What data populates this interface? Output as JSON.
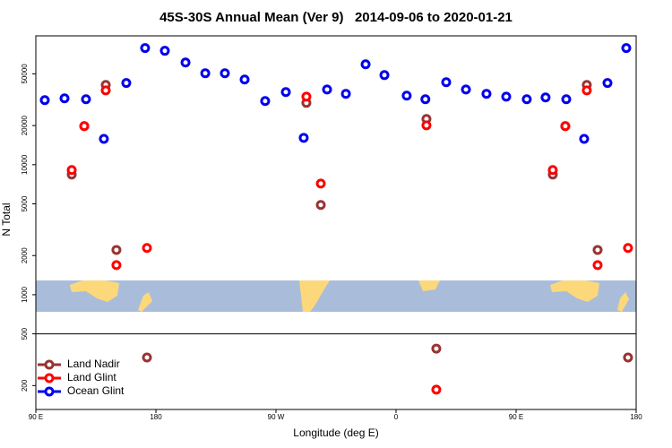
{
  "chart_data": {
    "type": "scatter",
    "title": "45S-30S Annual Mean (Ver 9)   2014-09-06 to 2020-01-21",
    "x_label": "Longitude (deg E)",
    "y_label": "N Total",
    "xlim": [
      90,
      540
    ],
    "ylim": [
      131,
      98000
    ],
    "log_y": true,
    "legend": "bottom-left",
    "xticks": [
      {
        "value": 90,
        "label": "90 E"
      },
      180,
      {
        "value": 270,
        "label": "90 W"
      },
      {
        "value": 360,
        "label": "0"
      },
      {
        "value": 450,
        "label": "90 E"
      },
      {
        "value": 540,
        "label": "180"
      }
    ],
    "yticks": [
      200,
      500,
      1000,
      2000,
      5000,
      10000,
      20000,
      50000
    ],
    "series": [
      {
        "name": "Ocean Glint",
        "color": "#0000ee",
        "x": [
          96.7,
          111.5,
          127.6,
          141,
          157.8,
          171.9,
          186.7,
          202.2,
          217,
          231.7,
          246.5,
          261.9,
          277.4,
          290.8,
          308.3,
          322.4,
          337.2,
          351.3,
          368,
          382,
          397.6,
          412.4,
          427.8,
          442.6,
          458,
          472.1,
          487.6,
          501,
          518.5,
          532.6
        ],
        "values": [
          31400,
          32400,
          31900,
          15800,
          42500,
          78900,
          75200,
          61100,
          50500,
          50500,
          45200,
          30900,
          36200,
          16100,
          37900,
          35100,
          59200,
          48900,
          34000,
          31900,
          43100,
          37900,
          35100,
          33400,
          31900,
          32900,
          31900,
          15800,
          42500,
          78900
        ]
      },
      {
        "name": "Land Nadir",
        "color": "#993333",
        "x": [
          116.9,
          126.3,
          142.4,
          150.4,
          173.3,
          292.8,
          303.6,
          382.8,
          390.2,
          477.5,
          486.9,
          503,
          511.1,
          533.9
        ],
        "values": [
          8400,
          19800,
          41100,
          2210,
          329,
          29900,
          4900,
          22500,
          385,
          8400,
          19800,
          41100,
          2210,
          329
        ]
      },
      {
        "name": "Land Glint",
        "color": "#ff0000",
        "x": [
          116.9,
          126.3,
          142.4,
          150.4,
          173.3,
          292.8,
          303.6,
          382.8,
          390.2,
          477.5,
          486.9,
          503,
          511.1,
          533.9
        ],
        "values": [
          9100,
          19800,
          37300,
          1690,
          2290,
          33400,
          7160,
          20100,
          186,
          9100,
          19800,
          37300,
          1690,
          2290
        ]
      }
    ]
  }
}
